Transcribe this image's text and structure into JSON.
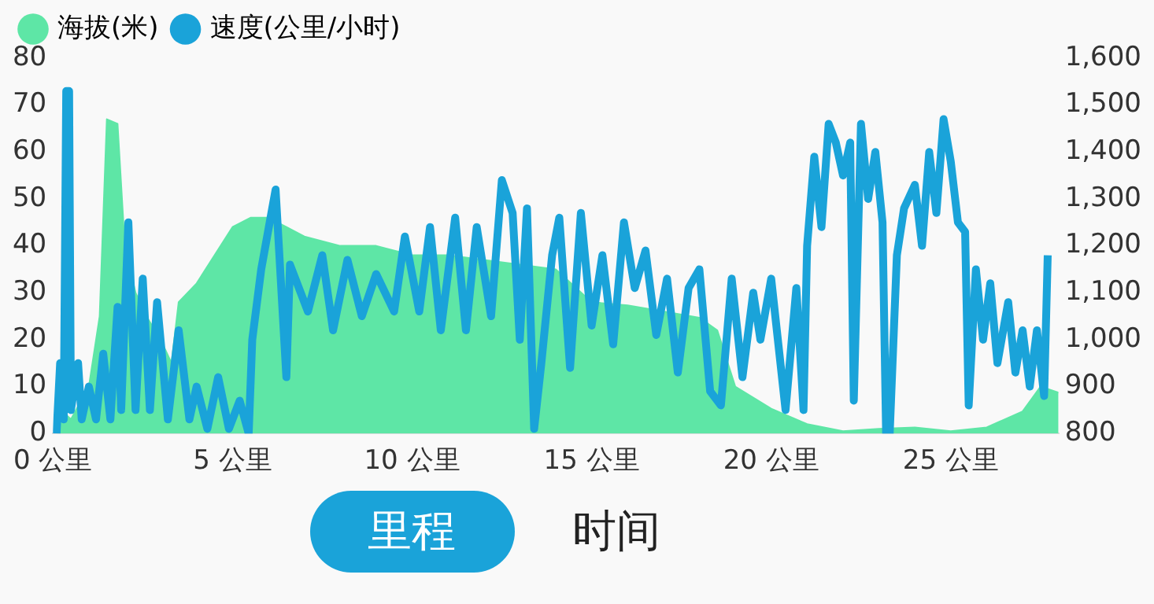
{
  "chart_data": {
    "type": "line",
    "legend": "top left",
    "marker": "none",
    "grid": false,
    "xlim": [
      0,
      28
    ],
    "xticks": [
      {
        "value": 0,
        "label": "0 公里"
      },
      {
        "value": 5,
        "label": "5 公里"
      },
      {
        "value": 10,
        "label": "10 公里"
      },
      {
        "value": 15,
        "label": "15 公里"
      },
      {
        "value": 20,
        "label": "20 公里"
      },
      {
        "value": 25,
        "label": "25 公里"
      }
    ],
    "ylim": [
      0,
      80
    ],
    "yticks": [
      0,
      10,
      20,
      30,
      40,
      50,
      60,
      70,
      80
    ],
    "y2lim": [
      800,
      1600
    ],
    "y2ticks": [
      800,
      900,
      {
        "value": 1000,
        "label": "1,000"
      },
      {
        "value": 1100,
        "label": "1,100"
      },
      {
        "value": 1200,
        "label": "1,200"
      },
      {
        "value": 1300,
        "label": "1,300"
      },
      {
        "value": 1400,
        "label": "1,400"
      },
      {
        "value": 1500,
        "label": "1,500"
      },
      {
        "value": 1600,
        "label": "1,600"
      }
    ],
    "annotations": [
      "里程",
      "时间"
    ],
    "series": [
      {
        "name": "海拔(米)",
        "type": "area",
        "axis": "y2",
        "color": "#5ee6a6",
        "x": [
          0.1,
          0.5,
          1,
          1.3,
          1.5,
          1.8,
          2,
          2.3,
          2.6,
          3,
          3.3,
          3.5,
          4,
          4.5,
          5,
          5.5,
          6,
          6.5,
          7,
          8,
          9,
          10,
          11,
          12,
          13,
          14,
          15,
          16,
          17,
          18,
          18.5,
          19,
          20,
          21,
          22,
          23,
          24,
          25,
          26,
          27,
          27.5,
          28
        ],
        "values": [
          860,
          830,
          900,
          1050,
          1470,
          1460,
          1200,
          1100,
          1050,
          1000,
          950,
          1080,
          1120,
          1180,
          1240,
          1260,
          1260,
          1240,
          1220,
          1200,
          1200,
          1180,
          1180,
          1170,
          1160,
          1150,
          1080,
          1073,
          1060,
          1047,
          1020,
          900,
          853,
          820,
          805,
          810,
          813,
          805,
          813,
          847,
          900,
          887
        ]
      },
      {
        "name": "速度(公里/小时)",
        "type": "line",
        "axis": "y",
        "color": "#1aa3d9",
        "x": [
          0.1,
          0.2,
          0.3,
          0.37,
          0.45,
          0.5,
          0.7,
          0.8,
          1,
          1.2,
          1.4,
          1.6,
          1.8,
          1.9,
          2.1,
          2.3,
          2.5,
          2.7,
          2.9,
          3.2,
          3.5,
          3.8,
          4,
          4.3,
          4.6,
          4.9,
          5.2,
          5.45,
          5.55,
          5.8,
          6.2,
          6.5,
          6.6,
          7.1,
          7.5,
          7.8,
          8.2,
          8.6,
          9,
          9.5,
          9.8,
          10.2,
          10.5,
          10.8,
          11.2,
          11.5,
          11.8,
          12.2,
          12.5,
          12.8,
          13,
          13.2,
          13.4,
          13.6,
          13.9,
          14.1,
          14.4,
          14.7,
          15,
          15.3,
          15.6,
          15.9,
          16.2,
          16.5,
          16.8,
          17.1,
          17.4,
          17.7,
          18,
          18.3,
          18.6,
          18.9,
          19.2,
          19.5,
          19.7,
          20,
          20.4,
          20.7,
          20.9,
          21,
          21.2,
          21.4,
          21.6,
          21.8,
          22,
          22.2,
          22.3,
          22.5,
          22.7,
          22.9,
          23.1,
          23.2,
          23.3,
          23.5,
          23.7,
          24,
          24.2,
          24.4,
          24.6,
          24.8,
          25,
          25.2,
          25.4,
          25.5,
          25.7,
          25.9,
          26.1,
          26.3,
          26.6,
          26.8,
          27,
          27.2,
          27.4,
          27.6,
          27.7
        ],
        "values": [
          0,
          15,
          3,
          73,
          73,
          5,
          15,
          3,
          10,
          3,
          17,
          3,
          27,
          5,
          45,
          5,
          33,
          5,
          28,
          3,
          22,
          3,
          10,
          1,
          12,
          1,
          7,
          0,
          20,
          35,
          52,
          12,
          36,
          26,
          38,
          22,
          37,
          25,
          34,
          26,
          42,
          26,
          44,
          22,
          46,
          22,
          44,
          25,
          54,
          47,
          20,
          48,
          1,
          15,
          38,
          46,
          14,
          47,
          23,
          38,
          19,
          45,
          31,
          39,
          21,
          33,
          13,
          31,
          35,
          9,
          6,
          33,
          12,
          30,
          20,
          33,
          5,
          31,
          5,
          40,
          59,
          44,
          66,
          62,
          55,
          62,
          7,
          66,
          50,
          60,
          45,
          0,
          0,
          38,
          48,
          53,
          40,
          60,
          47,
          67,
          58,
          45,
          43,
          6,
          35,
          20,
          32,
          15,
          28,
          13,
          22,
          10,
          22,
          8,
          38
        ]
      }
    ]
  }
}
